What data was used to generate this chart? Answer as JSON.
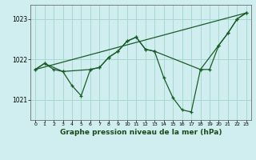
{
  "title": "Graphe pression niveau de la mer (hPa)",
  "bg_color": "#d0eef0",
  "grid_color": "#a8d8d0",
  "line_color": "#1a5c28",
  "ylim": [
    1020.5,
    1023.35
  ],
  "xlim": [
    -0.5,
    23.5
  ],
  "yticks": [
    1021,
    1022,
    1023
  ],
  "xticks": [
    0,
    1,
    2,
    3,
    4,
    5,
    6,
    7,
    8,
    9,
    10,
    11,
    12,
    13,
    14,
    15,
    16,
    17,
    18,
    19,
    20,
    21,
    22,
    23
  ],
  "line1_x": [
    0,
    1,
    2,
    3,
    4,
    5,
    6,
    7,
    8,
    9,
    10,
    11,
    12,
    13,
    14,
    15,
    16,
    17,
    18,
    19,
    20,
    21,
    22,
    23
  ],
  "line1_y": [
    1021.75,
    1021.9,
    1021.75,
    1021.7,
    1021.35,
    1021.1,
    1021.75,
    1021.8,
    1022.05,
    1022.2,
    1022.45,
    1022.55,
    1022.25,
    1022.2,
    1021.55,
    1021.05,
    1020.75,
    1020.7,
    1021.75,
    1021.75,
    1022.35,
    1022.65,
    1023.0,
    1023.15
  ],
  "line2_x": [
    0,
    1,
    3,
    6,
    7,
    8,
    9,
    10,
    11,
    12,
    13,
    18,
    20,
    21,
    22,
    23
  ],
  "line2_y": [
    1021.75,
    1021.9,
    1021.7,
    1021.75,
    1021.8,
    1022.05,
    1022.2,
    1022.45,
    1022.55,
    1022.25,
    1022.2,
    1021.75,
    1022.35,
    1022.65,
    1023.0,
    1023.15
  ],
  "line3_x": [
    0,
    23
  ],
  "line3_y": [
    1021.75,
    1023.15
  ],
  "ylabel_fontsize": 5.5,
  "xlabel_fontsize": 6.5
}
